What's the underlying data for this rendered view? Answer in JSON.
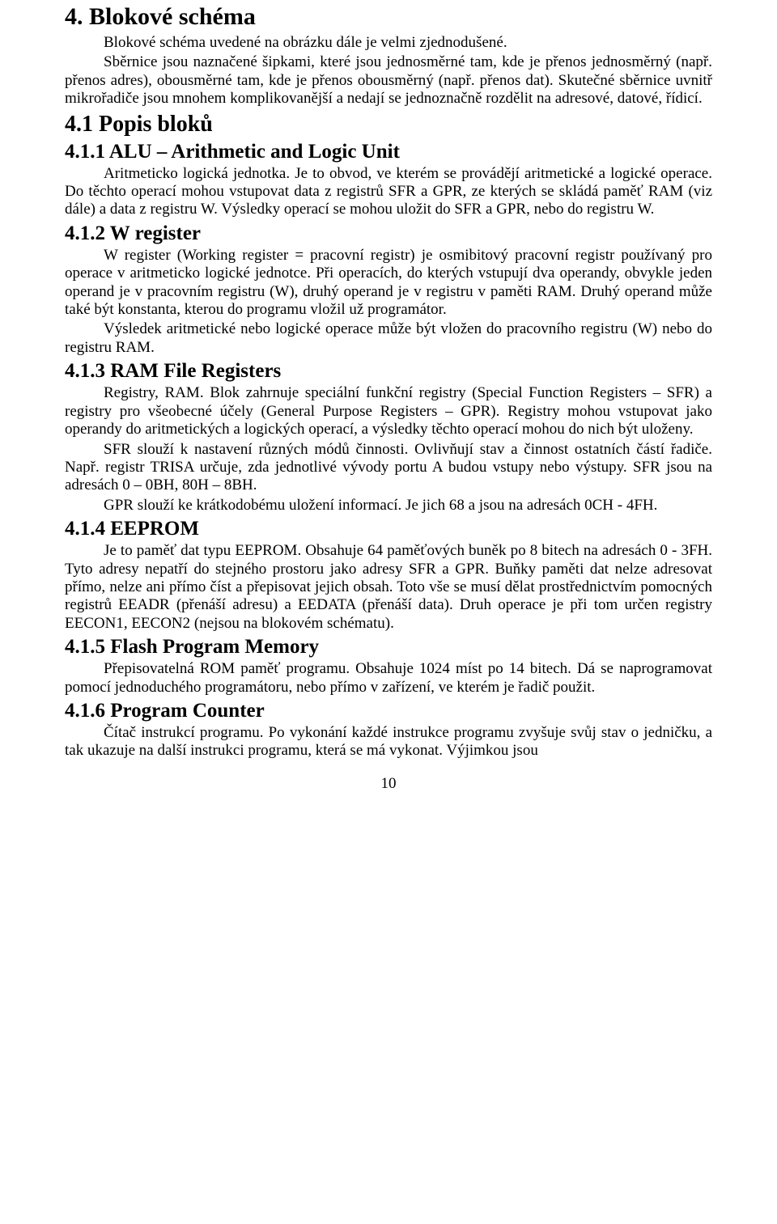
{
  "h1_4": "4. Blokové schéma",
  "p_4a": "Blokové schéma uvedené na obrázku dále je velmi zjednodušené.",
  "p_4b": "Sběrnice jsou naznačené šipkami, které jsou jednosměrné tam, kde je přenos jednosměrný (např. přenos adres), obousměrné tam, kde je přenos obousměrný (např. přenos dat). Skutečné sběrnice uvnitř mikrořadiče jsou mnohem komplikovanější a nedají se jednoznačně rozdělit na adresové, datové, řídicí.",
  "h2_41": "4.1 Popis bloků",
  "h3_411": "4.1.1 ALU – Arithmetic and Logic Unit",
  "p_411": "Aritmeticko logická jednotka. Je to obvod, ve kterém se provádějí aritmetické a logické operace. Do těchto operací mohou vstupovat data z registrů SFR a GPR, ze kterých se skládá paměť RAM (viz dále) a data z registru W. Výsledky operací se mohou uložit do SFR a GPR, nebo do registru W.",
  "h3_412": "4.1.2 W register",
  "p_412a": "W register (Working register = pracovní registr) je osmibitový pracovní registr používaný pro operace v aritmeticko logické jednotce. Při operacích, do kterých vstupují dva operandy, obvykle jeden operand je v pracovním registru (W), druhý operand je v registru v paměti RAM. Druhý operand může také být konstanta, kterou do programu vložil už programátor.",
  "p_412b": "Výsledek aritmetické nebo logické operace může být vložen do pracovního registru (W) nebo do registru RAM.",
  "h3_413": "4.1.3 RAM File Registers",
  "p_413a": "Registry, RAM. Blok zahrnuje speciální funkční registry (Special Function Registers – SFR) a registry pro všeobecné účely (General Purpose Registers – GPR). Registry mohou vstupovat jako operandy do aritmetických a logických operací, a výsledky těchto operací mohou do nich být uloženy.",
  "p_413b": "SFR slouží k nastavení různých módů činnosti. Ovlivňují stav a činnost ostatních částí řadiče. Např. registr TRISA určuje, zda jednotlivé vývody portu A budou vstupy nebo výstupy. SFR jsou na adresách 0 – 0BH, 80H – 8BH.",
  "p_413c": "GPR slouží ke krátkodobému uložení informací. Je jich 68 a jsou na adresách 0CH - 4FH.",
  "h3_414": "4.1.4 EEPROM",
  "p_414": "Je to paměť dat typu EEPROM. Obsahuje 64 paměťových buněk po 8 bitech na adresách 0 - 3FH. Tyto adresy nepatří do stejného prostoru jako adresy SFR a GPR. Buňky paměti dat nelze adresovat přímo, nelze ani přímo číst a přepisovat jejich obsah. Toto vše se musí dělat prostřednictvím pomocných registrů EEADR (přenáší adresu) a EEDATA (přenáší data). Druh operace je při tom určen registry EECON1, EECON2 (nejsou na blokovém schématu).",
  "h3_415": "4.1.5 Flash Program Memory",
  "p_415": "Přepisovatelná ROM paměť programu. Obsahuje 1024 míst po 14 bitech. Dá se naprogramovat pomocí jednoduchého programátoru, nebo přímo v zařízení, ve kterém je řadič použit.",
  "h3_416": "4.1.6 Program Counter",
  "p_416": "Čítač instrukcí programu. Po vykonání každé instrukce programu zvyšuje svůj stav o jedničku, a tak ukazuje na další instrukci programu, která se má vykonat. Výjimkou jsou",
  "pagenum": "10"
}
